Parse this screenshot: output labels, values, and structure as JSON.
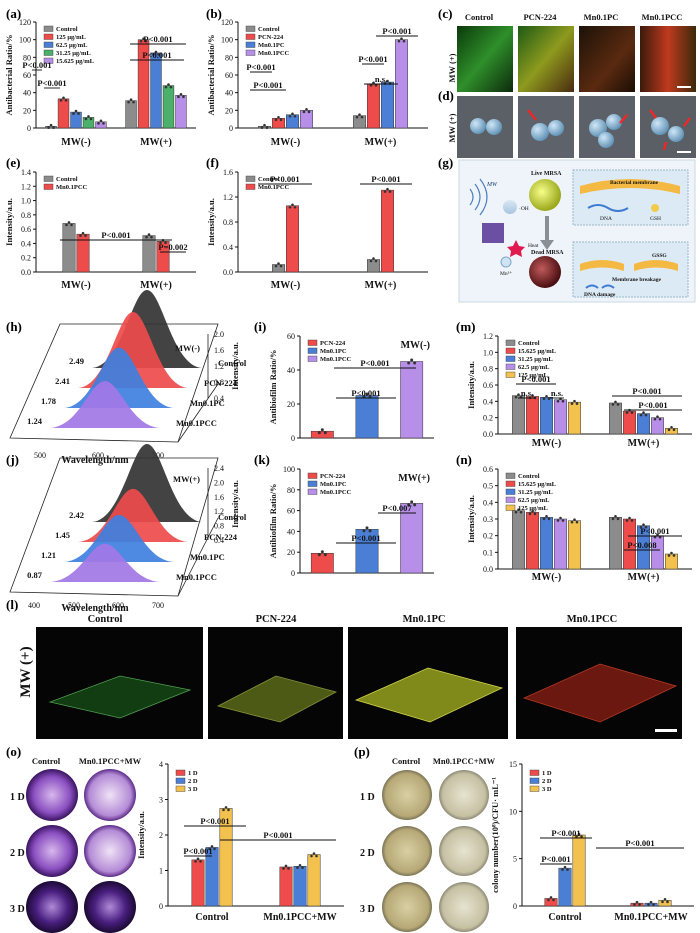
{
  "figure": {
    "letters": {
      "a": "(a)",
      "b": "(b)",
      "c": "(c)",
      "d": "(d)",
      "e": "(e)",
      "f": "(f)",
      "g": "(g)",
      "h": "(h)",
      "i": "(i)",
      "j": "(j)",
      "k": "(k)",
      "l": "(l)",
      "m": "(m)",
      "n": "(n)",
      "o": "(o)",
      "p": "(p)"
    },
    "panel_c": {
      "headers": [
        "Control",
        "PCN-224",
        "Mn0.1PC",
        "Mn0.1PCC"
      ],
      "row_label": "MW (+)"
    },
    "panel_d": {
      "row_label": "MW (+)"
    },
    "panel_g": {
      "labels": {
        "mw": "MW",
        "live": "Live MRSA",
        "dead": "Dead MRSA",
        "membrane": "Bacterial membrane",
        "dna": "DNA",
        "gsh": "GSH",
        "oh": "·OH",
        "heat": "Heat",
        "mn": "Mn²⁺",
        "gssg": "GSSG",
        "breakage": "Membrane breakage",
        "dna_damage": "DNA damage"
      }
    },
    "panel_l": {
      "headers": [
        "Control",
        "PCN-224",
        "Mn0.1PC",
        "Mn0.1PCC"
      ],
      "row_label": "MW (+)"
    },
    "panel_o": {
      "col_labels": [
        "Control",
        "Mn0.1PCC+MW"
      ],
      "row_labels": [
        "1 D",
        "2 D",
        "3 D"
      ]
    },
    "panel_p": {
      "col_labels": [
        "Control",
        "Mn0.1PCC+MW"
      ],
      "row_labels": [
        "1 D",
        "2 D",
        "3 D"
      ]
    }
  },
  "chart_data": [
    {
      "id": "a",
      "type": "bar",
      "ylabel": "Antibacterial Ratio/%",
      "ylim": [
        0,
        120
      ],
      "yticks": [
        "0",
        "20",
        "40",
        "60",
        "80",
        "100",
        "120"
      ],
      "categories": [
        "MW(-)",
        "MW(+)"
      ],
      "series": [
        {
          "name": "Control",
          "values": [
            2,
            31
          ]
        },
        {
          "name": "125 μg/mL",
          "values": [
            33,
            100
          ]
        },
        {
          "name": "62.5 μg/mL",
          "values": [
            18,
            85
          ]
        },
        {
          "name": "31.25 μg/mL",
          "values": [
            12,
            48
          ]
        },
        {
          "name": "15.625 μg/mL",
          "values": [
            7,
            37
          ]
        }
      ],
      "colors": [
        "#8c8c8c",
        "#ee4b4b",
        "#4b7fd6",
        "#4ab06a",
        "#b78ee8"
      ],
      "annotations": [
        "P<0.001",
        "P<0.001",
        "P<0.001",
        "P<0.001"
      ]
    },
    {
      "id": "b",
      "type": "bar",
      "ylabel": "Antibacterial Ratio/%",
      "ylim": [
        0,
        120
      ],
      "yticks": [
        "0",
        "20",
        "40",
        "60",
        "80",
        "100",
        "120"
      ],
      "categories": [
        "MW(-)",
        "MW(+)"
      ],
      "series": [
        {
          "name": "Control",
          "values": [
            2,
            14
          ]
        },
        {
          "name": "PCN-224",
          "values": [
            11,
            50
          ]
        },
        {
          "name": "Mn0.1PC",
          "values": [
            15,
            52
          ]
        },
        {
          "name": "Mn0.1PCC",
          "values": [
            20,
            100
          ]
        }
      ],
      "colors": [
        "#8c8c8c",
        "#ee4b4b",
        "#4b7fd6",
        "#b78ee8"
      ],
      "annotations": [
        "P<0.001",
        "P<0.001",
        "P<0.001",
        "n.s.",
        "P<0.001"
      ]
    },
    {
      "id": "e",
      "type": "bar",
      "ylabel": "Intensity/a.u.",
      "ylim": [
        0,
        1.4
      ],
      "yticks": [
        "0.0",
        "0.2",
        "0.4",
        "0.6",
        "0.8",
        "1.0",
        "1.2",
        "1.4"
      ],
      "categories": [
        "MW(-)",
        "MW(+)"
      ],
      "series": [
        {
          "name": "Control",
          "values": [
            0.68,
            0.51
          ]
        },
        {
          "name": "Mn0.1PCC",
          "values": [
            0.53,
            0.43
          ]
        }
      ],
      "colors": [
        "#8c8c8c",
        "#ee4b4b"
      ],
      "annotations": [
        "P<0.001",
        "P=0.002"
      ]
    },
    {
      "id": "f",
      "type": "bar",
      "ylabel": "Intensity/a.u.",
      "ylim": [
        0,
        1.6
      ],
      "yticks": [
        "0.0",
        "0.4",
        "0.8",
        "1.2",
        "1.6"
      ],
      "categories": [
        "MW(-)",
        "MW(+)"
      ],
      "series": [
        {
          "name": "Control",
          "values": [
            0.12,
            0.2
          ]
        },
        {
          "name": "Mn0.1PCC",
          "values": [
            1.06,
            1.31
          ]
        }
      ],
      "colors": [
        "#8c8c8c",
        "#ee4b4b"
      ],
      "annotations": [
        "P<0.001",
        "P<0.001"
      ]
    },
    {
      "id": "h",
      "type": "area",
      "xlabel": "Wavelength/nm",
      "zlabel": "Intensity/a.u.",
      "xticks": [
        "500",
        "600",
        "700"
      ],
      "zticks": [
        "0.4",
        "0.8",
        "1.2",
        "1.6",
        "2.0"
      ],
      "series": [
        {
          "name": "Control",
          "peak": 2.49
        },
        {
          "name": "PCN-224",
          "peak": 2.41
        },
        {
          "name": "Mn0.1PC",
          "peak": 1.78
        },
        {
          "name": "Mn0.1PCC",
          "peak": 1.24
        }
      ],
      "labels": [
        "2.49",
        "2.41",
        "1.78",
        "1.24"
      ],
      "condition": "MW(-)",
      "colors": [
        "#333333",
        "#ee4b4b",
        "#3f7fe0",
        "#a277e6"
      ]
    },
    {
      "id": "j",
      "type": "area",
      "xlabel": "Wavelength/nm",
      "zlabel": "Intensity/a.u.",
      "xticks": [
        "400",
        "500",
        "600",
        "700"
      ],
      "zticks": [
        "0.4",
        "0.8",
        "1.2",
        "1.6",
        "2.0",
        "2.4"
      ],
      "series": [
        {
          "name": "Control",
          "peak": 2.42
        },
        {
          "name": "PCN-224",
          "peak": 1.45
        },
        {
          "name": "Mn0.1PC",
          "peak": 1.21
        },
        {
          "name": "Mn0.1PCC",
          "peak": 0.87
        }
      ],
      "labels": [
        "2.42",
        "1.45",
        "1.21",
        "0.87"
      ],
      "condition": "MW(+)",
      "colors": [
        "#333333",
        "#ee4b4b",
        "#3f7fe0",
        "#a277e6"
      ]
    },
    {
      "id": "i",
      "type": "bar",
      "ylabel": "Antibiofilm Ratio/%",
      "ylim": [
        0,
        60
      ],
      "yticks": [
        "0",
        "20",
        "40",
        "60"
      ],
      "categories": [
        "PCN-224",
        "Mn0.1PC",
        "Mn0.1PCC"
      ],
      "values": [
        4,
        25,
        45
      ],
      "colors": [
        "#ee4b4b",
        "#4b7fd6",
        "#b78ee8"
      ],
      "condition": "MW(-)",
      "annotations": [
        "P<0.001",
        "P<0.001"
      ]
    },
    {
      "id": "k",
      "type": "bar",
      "ylabel": "Antibiofilm Ratio/%",
      "ylim": [
        0,
        100
      ],
      "yticks": [
        "0",
        "20",
        "40",
        "60",
        "80",
        "100"
      ],
      "categories": [
        "PCN-224",
        "Mn0.1PC",
        "Mn0.1PCC"
      ],
      "values": [
        19,
        42,
        67
      ],
      "colors": [
        "#ee4b4b",
        "#4b7fd6",
        "#b78ee8"
      ],
      "condition": "MW(+)",
      "annotations": [
        "P<0.001",
        "P<0.007"
      ]
    },
    {
      "id": "m",
      "type": "bar",
      "ylabel": "Intensity/a.u.",
      "ylim": [
        0,
        1.2
      ],
      "yticks": [
        "0.0",
        "0.2",
        "0.4",
        "0.6",
        "0.8",
        "1.0",
        "1.2"
      ],
      "categories": [
        "MW(-)",
        "MW(+)"
      ],
      "series": [
        {
          "name": "Control",
          "values": [
            0.47,
            0.38
          ]
        },
        {
          "name": "15.625 μg/mL",
          "values": [
            0.46,
            0.28
          ]
        },
        {
          "name": "31.25 μg/mL",
          "values": [
            0.45,
            0.25
          ]
        },
        {
          "name": "62.5 μg/mL",
          "values": [
            0.42,
            0.2
          ]
        },
        {
          "name": "125 μg/mL",
          "values": [
            0.39,
            0.07
          ]
        }
      ],
      "colors": [
        "#8c8c8c",
        "#ee4b4b",
        "#4b7fd6",
        "#b78ee8",
        "#f2c14e"
      ],
      "annotations": [
        "P<0.001",
        "n.s.",
        "n.s.",
        "P<0.001",
        "P<0.001"
      ]
    },
    {
      "id": "n",
      "type": "bar",
      "ylabel": "Intensity/a.u.",
      "ylim": [
        0,
        0.6
      ],
      "yticks": [
        "0.0",
        "0.1",
        "0.2",
        "0.3",
        "0.4",
        "0.5",
        "0.6"
      ],
      "categories": [
        "MW(-)",
        "MW(+)"
      ],
      "series": [
        {
          "name": "Control",
          "values": [
            0.35,
            0.31
          ]
        },
        {
          "name": "15.625 μg/mL",
          "values": [
            0.34,
            0.3
          ]
        },
        {
          "name": "31.25 μg/mL",
          "values": [
            0.31,
            0.26
          ]
        },
        {
          "name": "62.5 μg/mL",
          "values": [
            0.3,
            0.2
          ]
        },
        {
          "name": "125 μg/mL",
          "values": [
            0.29,
            0.09
          ]
        }
      ],
      "colors": [
        "#8c8c8c",
        "#ee4b4b",
        "#4b7fd6",
        "#b78ee8",
        "#f2c14e"
      ],
      "annotations": [
        "P<0.001",
        "P<0.008"
      ]
    },
    {
      "id": "o",
      "type": "bar",
      "ylabel": "Intensity/a.u.",
      "ylim": [
        0,
        4
      ],
      "yticks": [
        "0",
        "1",
        "2",
        "3",
        "4"
      ],
      "categories": [
        "Control",
        "Mn0.1PCC+MW"
      ],
      "series": [
        {
          "name": "1 D",
          "values": [
            1.3,
            1.1
          ]
        },
        {
          "name": "2 D",
          "values": [
            1.65,
            1.12
          ]
        },
        {
          "name": "3 D",
          "values": [
            2.75,
            1.45
          ]
        }
      ],
      "colors": [
        "#ee4b4b",
        "#4b7fd6",
        "#f2c14e"
      ],
      "annotations": [
        "P<0.001",
        "P<0.001",
        "P<0.001"
      ]
    },
    {
      "id": "p",
      "type": "bar",
      "ylabel": "colony number(10⁸)/CFU· mL⁻¹",
      "ylim": [
        0,
        15
      ],
      "yticks": [
        "0",
        "5",
        "10",
        "15"
      ],
      "categories": [
        "Control",
        "Mn0.1PCC+MW"
      ],
      "series": [
        {
          "name": "1 D",
          "values": [
            0.8,
            0.3
          ]
        },
        {
          "name": "2 D",
          "values": [
            4.0,
            0.3
          ]
        },
        {
          "name": "3 D",
          "values": [
            7.5,
            0.6
          ]
        }
      ],
      "colors": [
        "#ee4b4b",
        "#4b7fd6",
        "#f2c14e"
      ],
      "annotations": [
        "P<0.001",
        "P<0.001",
        "P<0.001"
      ]
    }
  ]
}
